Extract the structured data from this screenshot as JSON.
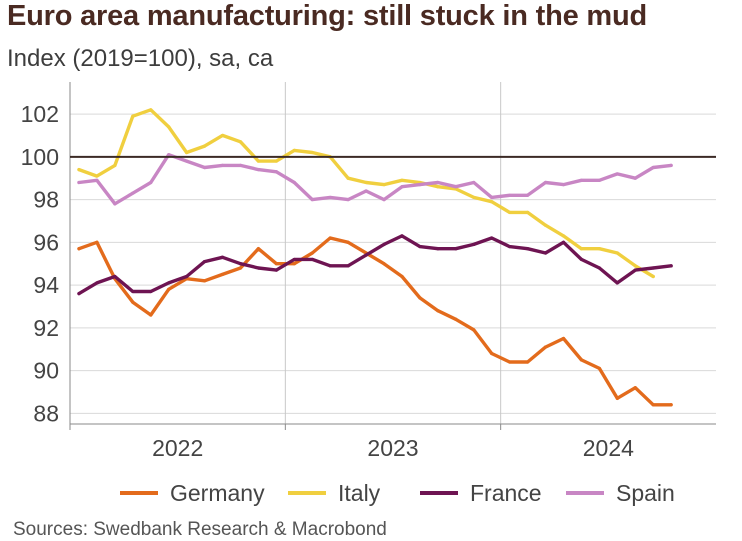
{
  "chart_data": {
    "type": "line",
    "title": "Euro area manufacturing: still stuck in the mud",
    "subtitle": "Index (2019=100), sa, ca",
    "source": "Sources: Swedbank Research & Macrobond",
    "xlabel": "",
    "ylabel": "",
    "ylim": [
      87.5,
      103.5
    ],
    "yticks": [
      88,
      90,
      92,
      94,
      96,
      98,
      100,
      102
    ],
    "ytick_labels": [
      "88",
      "90",
      "92",
      "94",
      "96",
      "98",
      "100",
      "102"
    ],
    "xlim": [
      0,
      36
    ],
    "x_labels": [
      {
        "label": "2022",
        "at": 6
      },
      {
        "label": "2023",
        "at": 18
      },
      {
        "label": "2024",
        "at": 30
      }
    ],
    "year_dividers": [
      12,
      24
    ],
    "reference_line": 100,
    "grid": true,
    "legend_position": "bottom",
    "x": [
      0.5,
      1.5,
      2.5,
      3.5,
      4.5,
      5.5,
      6.5,
      7.5,
      8.5,
      9.5,
      10.5,
      11.5,
      12.5,
      13.5,
      14.5,
      15.5,
      16.5,
      17.5,
      18.5,
      19.5,
      20.5,
      21.5,
      22.5,
      23.5,
      24.5,
      25.5,
      26.5,
      27.5,
      28.5,
      29.5,
      30.5,
      31.5,
      32.5,
      33.5,
      34.5,
      35.5
    ],
    "series": [
      {
        "name": "Germany",
        "color": "#e36b1c",
        "values": [
          95.7,
          96.0,
          94.3,
          93.2,
          92.6,
          93.8,
          94.3,
          94.2,
          94.5,
          94.8,
          95.7,
          95.0,
          95.0,
          95.5,
          96.2,
          96.0,
          95.5,
          95.0,
          94.4,
          93.4,
          92.8,
          92.4,
          91.9,
          90.8,
          90.4,
          90.4,
          91.1,
          91.5,
          90.5,
          90.1,
          88.7,
          89.2,
          88.4,
          88.4,
          null,
          null
        ]
      },
      {
        "name": "Italy",
        "color": "#f0cf3f",
        "values": [
          99.4,
          99.1,
          99.6,
          101.9,
          102.2,
          101.4,
          100.2,
          100.5,
          101.0,
          100.7,
          99.8,
          99.8,
          100.3,
          100.2,
          100.0,
          99.0,
          98.8,
          98.7,
          98.9,
          98.8,
          98.6,
          98.5,
          98.1,
          97.9,
          97.4,
          97.4,
          96.8,
          96.3,
          95.7,
          95.7,
          95.5,
          94.9,
          94.4,
          null,
          null,
          null
        ]
      },
      {
        "name": "France",
        "color": "#6e1452",
        "values": [
          93.6,
          94.1,
          94.4,
          93.7,
          93.7,
          94.1,
          94.4,
          95.1,
          95.3,
          95.0,
          94.8,
          94.7,
          95.2,
          95.2,
          94.9,
          94.9,
          95.4,
          95.9,
          96.3,
          95.8,
          95.7,
          95.7,
          95.9,
          96.2,
          95.8,
          95.7,
          95.5,
          96.0,
          95.2,
          94.8,
          94.1,
          94.7,
          94.8,
          94.9,
          null,
          null
        ]
      },
      {
        "name": "Spain",
        "color": "#c886c4",
        "values": [
          98.8,
          98.9,
          97.8,
          98.3,
          98.8,
          100.1,
          99.8,
          99.5,
          99.6,
          99.6,
          99.4,
          99.3,
          98.8,
          98.0,
          98.1,
          98.0,
          98.4,
          98.0,
          98.6,
          98.7,
          98.8,
          98.6,
          98.8,
          98.1,
          98.2,
          98.2,
          98.8,
          98.7,
          98.9,
          98.9,
          99.2,
          99.0,
          99.5,
          99.6,
          null,
          null
        ]
      }
    ]
  }
}
